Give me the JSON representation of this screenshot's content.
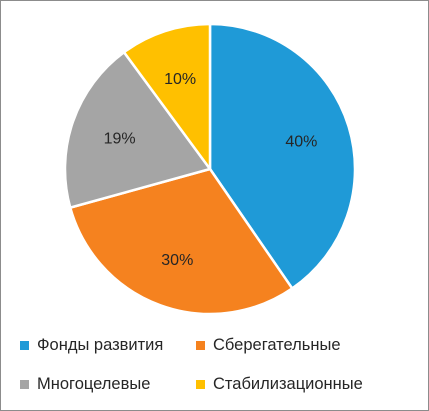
{
  "chart_data": {
    "type": "pie",
    "title": "",
    "labels": [
      "Фонды развития",
      "Сберегательные",
      "Многоцелевые",
      "Стабилизационные"
    ],
    "values": [
      40,
      30,
      19,
      10
    ],
    "data_labels": [
      "40%",
      "30%",
      "19%",
      "10%"
    ],
    "colors": [
      "#1f9ad7",
      "#f5821f",
      "#a5a5a5",
      "#ffc000"
    ],
    "legend_position": "bottom"
  }
}
